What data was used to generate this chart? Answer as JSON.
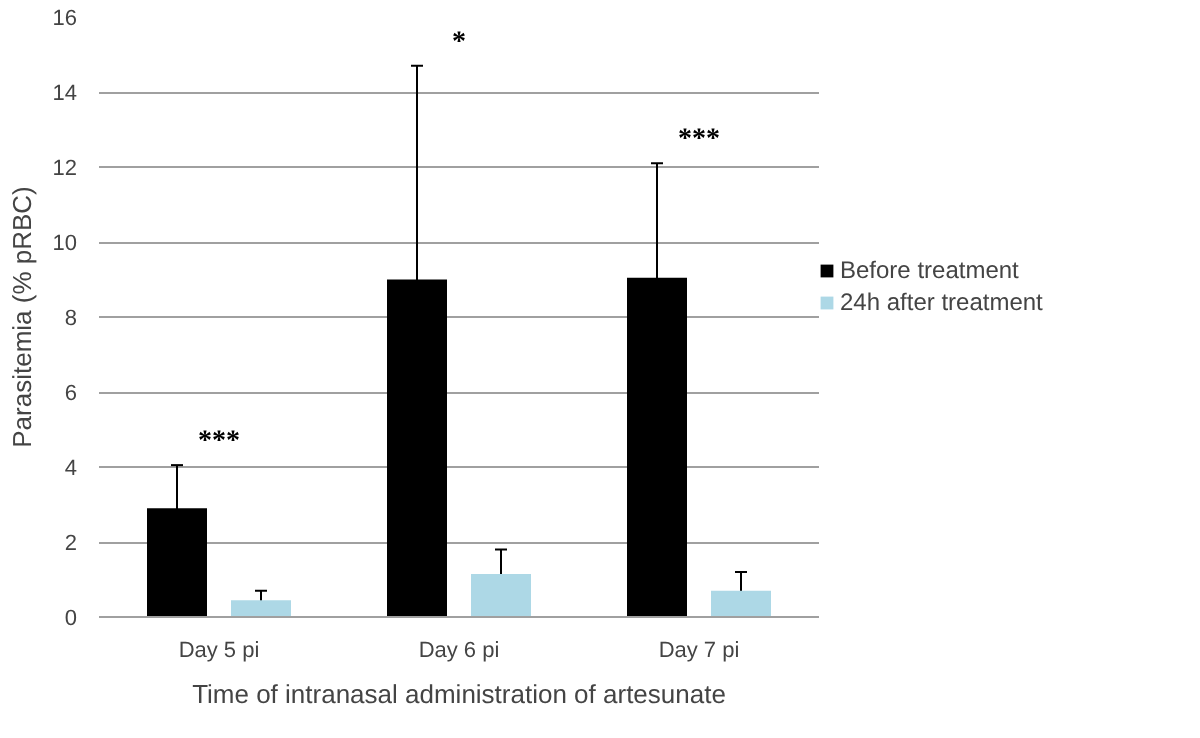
{
  "chart_data": {
    "type": "bar",
    "xlabel": "Time of intranasal administration of artesunate",
    "ylabel": "Parasitemia (% pRBC)",
    "categories": [
      "Day 5 pi",
      "Day 6 pi",
      "Day 7 pi"
    ],
    "series": [
      {
        "name": "Before treatment",
        "color": "#000000",
        "values": [
          2.9,
          9.0,
          9.05
        ],
        "errors": [
          1.15,
          5.7,
          3.05
        ]
      },
      {
        "name": "24h after treatment",
        "color": "#add8e6",
        "values": [
          0.45,
          1.15,
          0.7
        ],
        "errors": [
          0.25,
          0.65,
          0.5
        ]
      }
    ],
    "ylim": [
      0,
      16
    ],
    "yticks": [
      0,
      2,
      4,
      6,
      8,
      10,
      12,
      14,
      16
    ],
    "grid": "y",
    "legend": "right",
    "annotations": [
      "***",
      "*",
      "***"
    ]
  }
}
